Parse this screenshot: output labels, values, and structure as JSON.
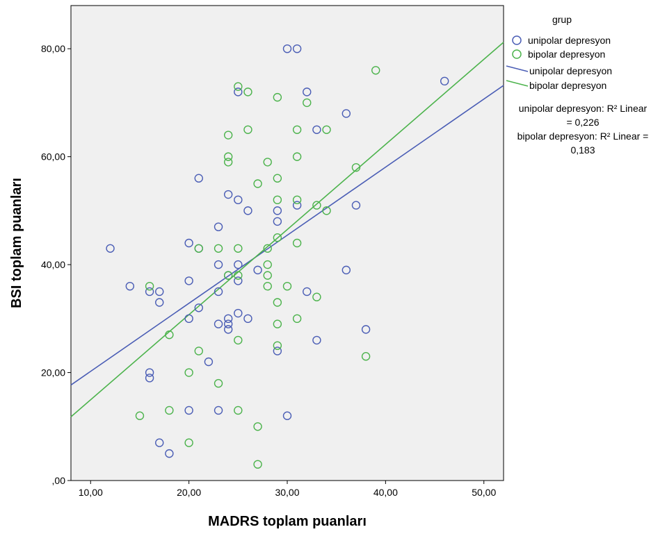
{
  "chart_data": {
    "type": "scatter",
    "xlabel": "MADRS toplam puanları",
    "ylabel": "BSI toplam puanları",
    "xlim": [
      8,
      52
    ],
    "ylim": [
      0,
      88
    ],
    "x_ticks": [
      10,
      20,
      30,
      40,
      50
    ],
    "x_tick_labels": [
      "10,00",
      "20,00",
      "30,00",
      "40,00",
      "50,00"
    ],
    "y_ticks": [
      0,
      20,
      40,
      60,
      80
    ],
    "y_tick_labels": [
      ",00",
      "20,00",
      "40,00",
      "60,00",
      "80,00"
    ],
    "grid": false,
    "background": "#f0f0f0",
    "legend": {
      "title": "grup",
      "position": "right",
      "entries": [
        {
          "label": "unipolar depresyon",
          "marker": "circle",
          "color": "#4a5db5"
        },
        {
          "label": "bipolar depresyon",
          "marker": "circle",
          "color": "#4cb34c"
        },
        {
          "label": "unipolar depresyon",
          "marker": "line",
          "color": "#4a5db5"
        },
        {
          "label": "bipolar depresyon",
          "marker": "line",
          "color": "#4cb34c"
        }
      ]
    },
    "r2_annotations": [
      {
        "line1": "unipolar depresyon: R² Linear",
        "line2": "= 0,226"
      },
      {
        "line1": "bipolar depresyon: R² Linear =",
        "line2": "0,183"
      }
    ],
    "series": [
      {
        "name": "unipolar depresyon",
        "color": "#4a5db5",
        "points": [
          [
            12,
            43
          ],
          [
            14,
            36
          ],
          [
            16,
            35
          ],
          [
            16,
            20
          ],
          [
            16,
            19
          ],
          [
            17,
            35
          ],
          [
            17,
            33
          ],
          [
            17,
            7
          ],
          [
            18,
            5
          ],
          [
            20,
            44
          ],
          [
            20,
            37
          ],
          [
            20,
            30
          ],
          [
            20,
            13
          ],
          [
            21,
            56
          ],
          [
            21,
            43
          ],
          [
            21,
            32
          ],
          [
            22,
            22
          ],
          [
            23,
            47
          ],
          [
            23,
            40
          ],
          [
            23,
            35
          ],
          [
            23,
            29
          ],
          [
            23,
            13
          ],
          [
            24,
            53
          ],
          [
            24,
            38
          ],
          [
            24,
            30
          ],
          [
            24,
            29
          ],
          [
            24,
            28
          ],
          [
            25,
            72
          ],
          [
            25,
            52
          ],
          [
            25,
            40
          ],
          [
            25,
            37
          ],
          [
            25,
            31
          ],
          [
            26,
            50
          ],
          [
            26,
            30
          ],
          [
            27,
            39
          ],
          [
            29,
            50
          ],
          [
            29,
            48
          ],
          [
            29,
            24
          ],
          [
            30,
            80
          ],
          [
            30,
            12
          ],
          [
            31,
            80
          ],
          [
            31,
            51
          ],
          [
            32,
            72
          ],
          [
            32,
            35
          ],
          [
            33,
            65
          ],
          [
            33,
            26
          ],
          [
            36,
            68
          ],
          [
            36,
            39
          ],
          [
            37,
            51
          ],
          [
            38,
            28
          ],
          [
            46,
            74
          ]
        ],
        "fit": {
          "x": [
            8,
            52
          ],
          "y": [
            17.7,
            73.2
          ]
        }
      },
      {
        "name": "bipolar depresyon",
        "color": "#4cb34c",
        "points": [
          [
            15,
            12
          ],
          [
            16,
            36
          ],
          [
            18,
            27
          ],
          [
            18,
            13
          ],
          [
            20,
            20
          ],
          [
            20,
            7
          ],
          [
            21,
            43
          ],
          [
            21,
            24
          ],
          [
            23,
            43
          ],
          [
            23,
            18
          ],
          [
            24,
            64
          ],
          [
            24,
            60
          ],
          [
            24,
            59
          ],
          [
            24,
            38
          ],
          [
            25,
            73
          ],
          [
            25,
            43
          ],
          [
            25,
            38
          ],
          [
            25,
            26
          ],
          [
            25,
            13
          ],
          [
            26,
            72
          ],
          [
            26,
            65
          ],
          [
            27,
            55
          ],
          [
            27,
            10
          ],
          [
            27,
            3
          ],
          [
            28,
            59
          ],
          [
            28,
            43
          ],
          [
            28,
            40
          ],
          [
            28,
            38
          ],
          [
            28,
            36
          ],
          [
            29,
            71
          ],
          [
            29,
            56
          ],
          [
            29,
            52
          ],
          [
            29,
            45
          ],
          [
            29,
            33
          ],
          [
            29,
            29
          ],
          [
            29,
            25
          ],
          [
            30,
            36
          ],
          [
            31,
            65
          ],
          [
            31,
            60
          ],
          [
            31,
            52
          ],
          [
            31,
            44
          ],
          [
            31,
            30
          ],
          [
            32,
            70
          ],
          [
            33,
            51
          ],
          [
            33,
            34
          ],
          [
            34,
            65
          ],
          [
            34,
            50
          ],
          [
            37,
            58
          ],
          [
            38,
            23
          ],
          [
            39,
            76
          ]
        ],
        "fit": {
          "x": [
            8,
            52
          ],
          "y": [
            11.8,
            81.2
          ]
        }
      }
    ]
  }
}
